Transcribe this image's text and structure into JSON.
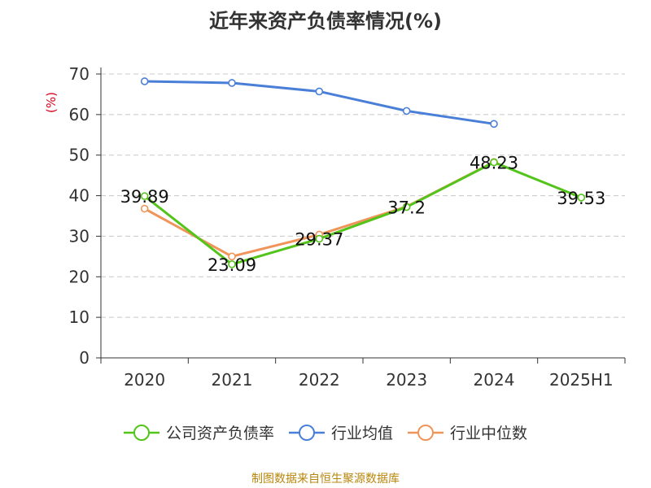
{
  "chart_data": {
    "type": "line",
    "title": "近年来资产负债率情况(%)",
    "ylabel": "(%)",
    "xlabel": "",
    "categories": [
      "2020",
      "2021",
      "2022",
      "2023",
      "2024",
      "2025H1"
    ],
    "ylim": [
      0,
      70
    ],
    "yticks": [
      0,
      10,
      20,
      30,
      40,
      50,
      60,
      70
    ],
    "grid": true,
    "legend_position": "bottom",
    "series": [
      {
        "name": "公司资产负债率",
        "color": "#52c41a",
        "values": [
          39.89,
          23.09,
          29.37,
          37.2,
          48.23,
          39.53
        ],
        "labels": [
          "39.89",
          "23.09",
          "29.37",
          "37.2",
          "48.23",
          "39.53"
        ]
      },
      {
        "name": "行业均值",
        "color": "#4a7fd8",
        "values": [
          68.2,
          67.8,
          65.7,
          60.9,
          57.7,
          null
        ]
      },
      {
        "name": "行业中位数",
        "color": "#f0955a",
        "values": [
          36.8,
          25.0,
          30.4,
          37.3,
          48.3,
          null
        ]
      }
    ]
  },
  "footer": "制图数据来自恒生聚源数据库"
}
